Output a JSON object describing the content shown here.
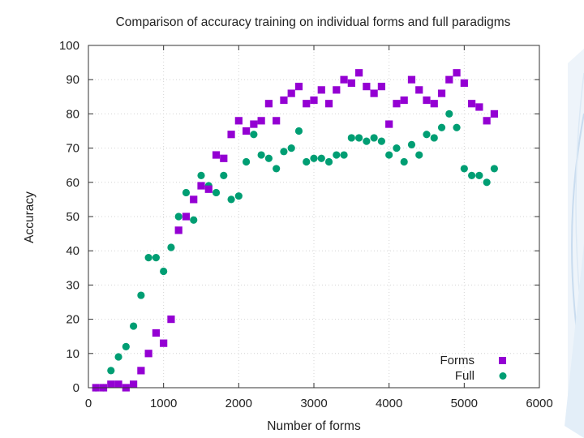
{
  "chart_data": {
    "type": "scatter",
    "title": "Comparison of accuracy training on individual forms and full paradigms",
    "xlabel": "Number of forms",
    "ylabel": "Accuracy",
    "xlim": [
      0,
      6000
    ],
    "ylim": [
      0,
      100
    ],
    "xticks": [
      0,
      1000,
      2000,
      3000,
      4000,
      5000,
      6000
    ],
    "yticks": [
      0,
      10,
      20,
      30,
      40,
      50,
      60,
      70,
      80,
      90,
      100
    ],
    "grid": true,
    "legend_position": "bottom-right",
    "series": [
      {
        "name": "Forms",
        "marker": "square",
        "color": "#9400d3",
        "points": [
          [
            100,
            0
          ],
          [
            200,
            0
          ],
          [
            300,
            1
          ],
          [
            400,
            1
          ],
          [
            500,
            0
          ],
          [
            600,
            1
          ],
          [
            700,
            5
          ],
          [
            800,
            10
          ],
          [
            900,
            16
          ],
          [
            1000,
            13
          ],
          [
            1100,
            20
          ],
          [
            1200,
            46
          ],
          [
            1300,
            50
          ],
          [
            1400,
            55
          ],
          [
            1500,
            59
          ],
          [
            1600,
            58
          ],
          [
            1700,
            68
          ],
          [
            1800,
            67
          ],
          [
            1900,
            74
          ],
          [
            2000,
            78
          ],
          [
            2100,
            75
          ],
          [
            2200,
            77
          ],
          [
            2300,
            78
          ],
          [
            2400,
            83
          ],
          [
            2500,
            78
          ],
          [
            2600,
            84
          ],
          [
            2700,
            86
          ],
          [
            2800,
            88
          ],
          [
            2900,
            83
          ],
          [
            3000,
            84
          ],
          [
            3100,
            87
          ],
          [
            3200,
            83
          ],
          [
            3300,
            87
          ],
          [
            3400,
            90
          ],
          [
            3500,
            89
          ],
          [
            3600,
            92
          ],
          [
            3700,
            88
          ],
          [
            3800,
            86
          ],
          [
            3900,
            88
          ],
          [
            4000,
            77
          ],
          [
            4100,
            83
          ],
          [
            4200,
            84
          ],
          [
            4300,
            90
          ],
          [
            4400,
            87
          ],
          [
            4500,
            84
          ],
          [
            4600,
            83
          ],
          [
            4700,
            86
          ],
          [
            4800,
            90
          ],
          [
            4900,
            92
          ],
          [
            5000,
            89
          ],
          [
            5100,
            83
          ],
          [
            5200,
            82
          ],
          [
            5300,
            78
          ],
          [
            5400,
            80
          ]
        ]
      },
      {
        "name": "Full",
        "marker": "circle",
        "color": "#009e73",
        "points": [
          [
            100,
            0
          ],
          [
            200,
            0
          ],
          [
            300,
            5
          ],
          [
            400,
            9
          ],
          [
            500,
            12
          ],
          [
            600,
            18
          ],
          [
            700,
            27
          ],
          [
            800,
            38
          ],
          [
            900,
            38
          ],
          [
            1000,
            34
          ],
          [
            1100,
            41
          ],
          [
            1200,
            50
          ],
          [
            1300,
            57
          ],
          [
            1400,
            49
          ],
          [
            1500,
            62
          ],
          [
            1600,
            59
          ],
          [
            1700,
            57
          ],
          [
            1800,
            62
          ],
          [
            1900,
            55
          ],
          [
            2000,
            56
          ],
          [
            2100,
            66
          ],
          [
            2200,
            74
          ],
          [
            2300,
            68
          ],
          [
            2400,
            67
          ],
          [
            2500,
            64
          ],
          [
            2600,
            69
          ],
          [
            2700,
            70
          ],
          [
            2800,
            75
          ],
          [
            2900,
            66
          ],
          [
            3000,
            67
          ],
          [
            3100,
            67
          ],
          [
            3200,
            66
          ],
          [
            3300,
            68
          ],
          [
            3400,
            68
          ],
          [
            3500,
            73
          ],
          [
            3600,
            73
          ],
          [
            3700,
            72
          ],
          [
            3800,
            73
          ],
          [
            3900,
            72
          ],
          [
            4000,
            68
          ],
          [
            4100,
            70
          ],
          [
            4200,
            66
          ],
          [
            4300,
            71
          ],
          [
            4400,
            68
          ],
          [
            4500,
            74
          ],
          [
            4600,
            73
          ],
          [
            4700,
            76
          ],
          [
            4800,
            80
          ],
          [
            4900,
            76
          ],
          [
            5000,
            64
          ],
          [
            5100,
            62
          ],
          [
            5200,
            62
          ],
          [
            5300,
            60
          ],
          [
            5400,
            64
          ]
        ]
      }
    ]
  }
}
